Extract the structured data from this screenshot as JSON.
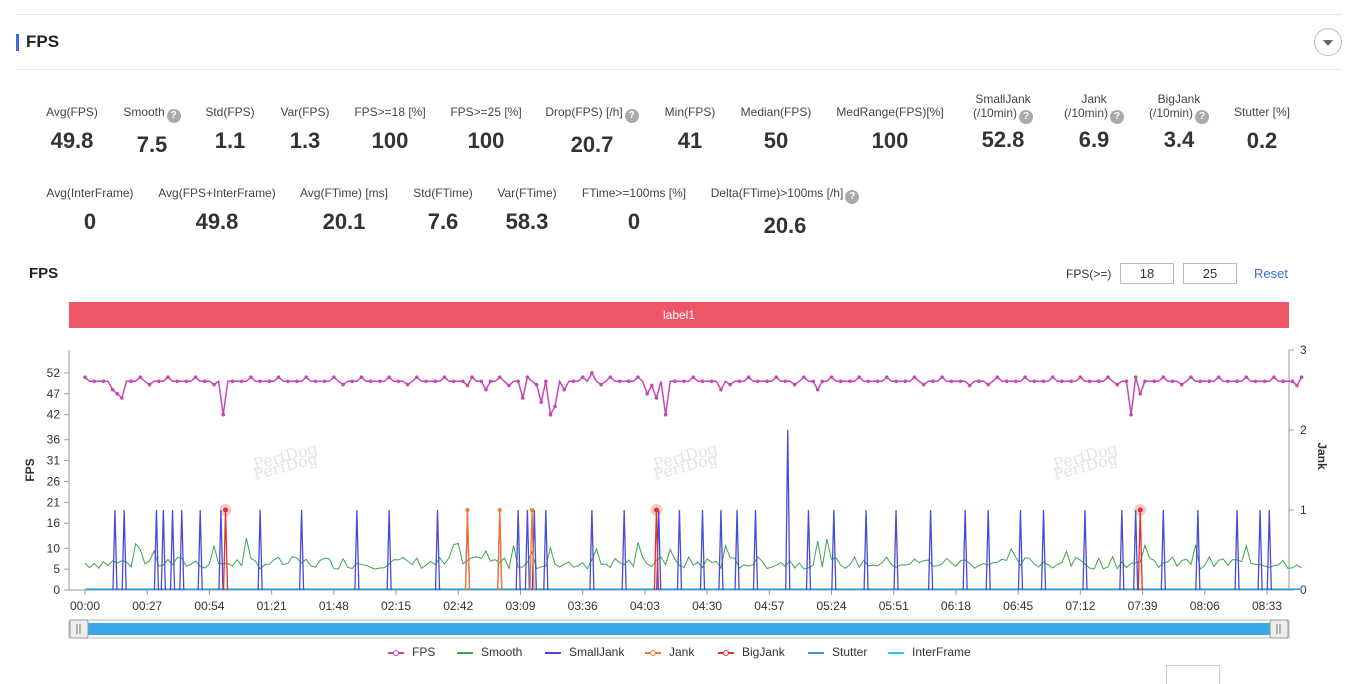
{
  "section": {
    "title": "FPS"
  },
  "stats": [
    {
      "id": "avg-fps",
      "label": "Avg(FPS)",
      "value": "49.8",
      "help": false
    },
    {
      "id": "smooth",
      "label": "Smooth",
      "value": "7.5",
      "help": true
    },
    {
      "id": "std-fps",
      "label": "Std(FPS)",
      "value": "1.1",
      "help": false
    },
    {
      "id": "var-fps",
      "label": "Var(FPS)",
      "value": "1.3",
      "help": false
    },
    {
      "id": "fps-ge-18",
      "label": "FPS>=18 [%]",
      "value": "100",
      "help": false
    },
    {
      "id": "fps-ge-25",
      "label": "FPS>=25 [%]",
      "value": "100",
      "help": false
    },
    {
      "id": "drop-fps",
      "label": "Drop(FPS) [/h]",
      "value": "20.7",
      "help": true
    },
    {
      "id": "min-fps",
      "label": "Min(FPS)",
      "value": "41",
      "help": false
    },
    {
      "id": "median-fps",
      "label": "Median(FPS)",
      "value": "50",
      "help": false
    },
    {
      "id": "medrange-fps",
      "label": "MedRange(FPS)[%]",
      "value": "100",
      "help": false
    },
    {
      "id": "small-jank",
      "label": "SmallJank (/10min)",
      "value": "52.8",
      "help": true
    },
    {
      "id": "jank",
      "label": "Jank (/10min)",
      "value": "6.9",
      "help": true
    },
    {
      "id": "big-jank",
      "label": "BigJank (/10min)",
      "value": "3.4",
      "help": true
    },
    {
      "id": "stutter",
      "label": "Stutter [%]",
      "value": "0.2",
      "help": false
    },
    {
      "id": "avg-interframe",
      "label": "Avg(InterFrame)",
      "value": "0",
      "help": false
    },
    {
      "id": "avg-fps-interframe",
      "label": "Avg(FPS+InterFrame)",
      "value": "49.8",
      "help": false
    },
    {
      "id": "avg-ftime",
      "label": "Avg(FTime) [ms]",
      "value": "20.1",
      "help": false
    },
    {
      "id": "std-ftime",
      "label": "Std(FTime)",
      "value": "7.6",
      "help": false
    },
    {
      "id": "var-ftime",
      "label": "Var(FTime)",
      "value": "58.3",
      "help": false
    },
    {
      "id": "ftime-ge-100",
      "label": "FTime>=100ms [%]",
      "value": "0",
      "help": false
    },
    {
      "id": "delta-ftime",
      "label": "Delta(FTime)>100ms [/h]",
      "value": "20.6",
      "help": true
    }
  ],
  "chart_header": {
    "title": "FPS",
    "threshold_label": "FPS(>=)",
    "threshold_low": "18",
    "threshold_high": "25",
    "reset_label": "Reset"
  },
  "label_band": {
    "text": "label1",
    "color": "#ee5566"
  },
  "colors": {
    "fps": "#c846b8",
    "smooth": "#3aa64c",
    "smalljank": "#4a4ad6",
    "jank": "#f07830",
    "bigjank": "#e03030",
    "stutter": "#4a90e8",
    "interframe": "#30c8d8",
    "slider": "#3aa8e8"
  },
  "chart_data": {
    "type": "line",
    "xlabel": "",
    "ylabel": "FPS",
    "y2label": "Jank",
    "x_ticks": [
      "00:00",
      "00:27",
      "00:54",
      "01:21",
      "01:48",
      "02:15",
      "02:42",
      "03:09",
      "03:36",
      "04:03",
      "04:30",
      "04:57",
      "05:24",
      "05:51",
      "06:18",
      "06:45",
      "07:12",
      "07:39",
      "08:06",
      "08:33"
    ],
    "xlim_seconds": [
      0,
      528
    ],
    "y_ticks": [
      0,
      5,
      10,
      16,
      21,
      26,
      31,
      36,
      42,
      47,
      52
    ],
    "ylim": [
      0,
      57.5
    ],
    "y2_ticks": [
      0,
      1,
      2,
      3
    ],
    "y2lim": [
      0,
      3
    ],
    "legend_position": "bottom",
    "series": [
      {
        "name": "FPS",
        "key": "fps",
        "axis": "left",
        "baseline": 50,
        "style": "line-dots",
        "dips": [
          [
            12,
            48
          ],
          [
            14,
            47
          ],
          [
            16,
            46
          ],
          [
            60,
            42
          ],
          [
            166,
            49
          ],
          [
            174,
            48
          ],
          [
            180,
            51
          ],
          [
            185,
            49
          ],
          [
            190,
            46
          ],
          [
            198,
            45
          ],
          [
            202,
            42
          ],
          [
            205,
            44
          ],
          [
            208,
            48
          ],
          [
            246,
            49
          ],
          [
            244,
            47
          ],
          [
            252,
            42
          ],
          [
            248,
            46
          ],
          [
            277,
            48
          ],
          [
            318,
            48
          ],
          [
            384,
            49
          ],
          [
            455,
            42
          ],
          [
            458,
            47
          ],
          [
            527,
            49
          ]
        ],
        "peaks": [
          [
            180,
            52
          ],
          [
            221,
            52
          ],
          [
            276,
            51
          ]
        ]
      },
      {
        "name": "Smooth",
        "key": "smooth",
        "axis": "left",
        "baseline": 6.5,
        "style": "noise"
      },
      {
        "name": "SmallJank",
        "key": "smalljank",
        "axis": "right",
        "style": "spikes",
        "events": [
          [
            13,
            1
          ],
          [
            17,
            1
          ],
          [
            31,
            1
          ],
          [
            34,
            1
          ],
          [
            38,
            1
          ],
          [
            42,
            1
          ],
          [
            50,
            1
          ],
          [
            59,
            1
          ],
          [
            76,
            1
          ],
          [
            94,
            1
          ],
          [
            118,
            1
          ],
          [
            132,
            1
          ],
          [
            153,
            1
          ],
          [
            166,
            1
          ],
          [
            180,
            1
          ],
          [
            188,
            1
          ],
          [
            192,
            1
          ],
          [
            195,
            1
          ],
          [
            200,
            1
          ],
          [
            220,
            1
          ],
          [
            234,
            1
          ],
          [
            249,
            1
          ],
          [
            258,
            1
          ],
          [
            268,
            1
          ],
          [
            276,
            1
          ],
          [
            283,
            1
          ],
          [
            291,
            1
          ],
          [
            305,
            2
          ],
          [
            314,
            1
          ],
          [
            325,
            1
          ],
          [
            339,
            1
          ],
          [
            352,
            1
          ],
          [
            367,
            1
          ],
          [
            382,
            1
          ],
          [
            392,
            1
          ],
          [
            406,
            1
          ],
          [
            416,
            1
          ],
          [
            434,
            1
          ],
          [
            450,
            1
          ],
          [
            456,
            1
          ],
          [
            468,
            1
          ],
          [
            483,
            1
          ],
          [
            500,
            1
          ],
          [
            510,
            1
          ],
          [
            514,
            1
          ]
        ]
      },
      {
        "name": "Jank",
        "key": "jank",
        "axis": "right",
        "style": "spikes",
        "events": [
          [
            166,
            1
          ],
          [
            180,
            1
          ],
          [
            194,
            1
          ]
        ]
      },
      {
        "name": "BigJank",
        "key": "bigjank",
        "axis": "right",
        "style": "spikes",
        "events": [
          [
            61,
            1
          ],
          [
            248,
            1
          ],
          [
            458,
            1
          ]
        ]
      },
      {
        "name": "Stutter",
        "key": "stutter",
        "axis": "right",
        "style": "baseline"
      },
      {
        "name": "InterFrame",
        "key": "interframe",
        "axis": "right",
        "style": "baseline"
      }
    ]
  },
  "watermark": "PerfDog"
}
